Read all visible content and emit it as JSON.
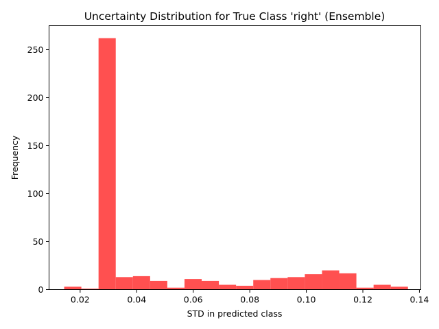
{
  "chart_data": {
    "type": "bar",
    "title": "Uncertainty Distribution for True Class 'right' (Ensemble)",
    "xlabel": "STD in predicted class",
    "ylabel": "Frequency",
    "xlim": [
      0.009,
      0.1405
    ],
    "ylim": [
      0,
      275
    ],
    "xticks": [
      0.02,
      0.04,
      0.06,
      0.08,
      0.1,
      0.12,
      0.14
    ],
    "xtick_labels": [
      "0.02",
      "0.04",
      "0.06",
      "0.08",
      "0.10",
      "0.12",
      "0.14"
    ],
    "yticks": [
      0,
      50,
      100,
      150,
      200,
      250
    ],
    "ytick_labels": [
      "0",
      "50",
      "100",
      "150",
      "200",
      "250"
    ],
    "bar_color": "#ff5050",
    "bin_edges": [
      0.01435,
      0.02043,
      0.02651,
      0.03259,
      0.03867,
      0.04475,
      0.05083,
      0.05691,
      0.06299,
      0.06907,
      0.07515,
      0.08123,
      0.08731,
      0.09339,
      0.09947,
      0.10555,
      0.11163,
      0.11771,
      0.12379,
      0.12987,
      0.13595
    ],
    "values": [
      3,
      1,
      262,
      13,
      14,
      9,
      2,
      11,
      9,
      5,
      4,
      10,
      12,
      13,
      16,
      20,
      17,
      2,
      5,
      3
    ],
    "grid": false,
    "legend": "none"
  }
}
